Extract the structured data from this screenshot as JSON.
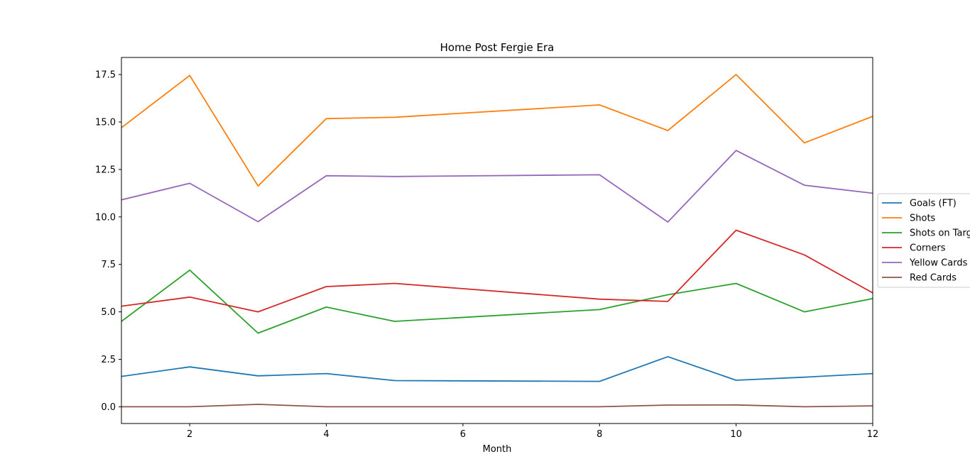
{
  "chart_data": {
    "type": "line",
    "title": "Home Post Fergie Era",
    "xlabel": "Month",
    "ylabel": "",
    "x": [
      1,
      2,
      3,
      4,
      5,
      8,
      9,
      10,
      11,
      12
    ],
    "xlim": [
      1,
      12
    ],
    "ylim": [
      -0.88,
      18.4
    ],
    "xticks": [
      2,
      4,
      6,
      8,
      10,
      12
    ],
    "xtick_labels": [
      "2",
      "4",
      "6",
      "8",
      "10",
      "12"
    ],
    "yticks": [
      0,
      2.5,
      5,
      7.5,
      10,
      12.5,
      15,
      17.5
    ],
    "ytick_labels": [
      "0.0",
      "2.5",
      "5.0",
      "7.5",
      "10.0",
      "12.5",
      "15.0",
      "17.5"
    ],
    "grid": false,
    "legend_position": "center-right (outside)",
    "series": [
      {
        "name": "Goals (FT)",
        "color": "#1f77b4",
        "values": [
          1.6,
          2.1,
          1.63,
          1.75,
          1.38,
          1.34,
          2.64,
          1.4,
          1.56,
          1.75
        ]
      },
      {
        "name": "Shots",
        "color": "#ff7f0e",
        "values": [
          14.7,
          17.45,
          11.63,
          15.18,
          15.25,
          15.9,
          14.55,
          17.5,
          13.9,
          15.3
        ]
      },
      {
        "name": "Shots on Target",
        "color": "#2ca02c",
        "values": [
          4.5,
          7.2,
          3.88,
          5.25,
          4.5,
          5.12,
          5.9,
          6.5,
          5.0,
          5.7
        ]
      },
      {
        "name": "Corners",
        "color": "#d62728",
        "values": [
          5.3,
          5.78,
          5.0,
          6.33,
          6.5,
          5.67,
          5.55,
          9.3,
          8.0,
          6.0
        ]
      },
      {
        "name": "Yellow Cards",
        "color": "#9467bd",
        "values": [
          10.9,
          11.77,
          9.75,
          12.17,
          12.13,
          12.22,
          9.73,
          13.5,
          11.67,
          11.25
        ]
      },
      {
        "name": "Red Cards",
        "color": "#8c564b",
        "values": [
          0.0,
          0.0,
          0.13,
          0.0,
          0.0,
          0.0,
          0.09,
          0.1,
          0.0,
          0.05
        ]
      }
    ]
  }
}
